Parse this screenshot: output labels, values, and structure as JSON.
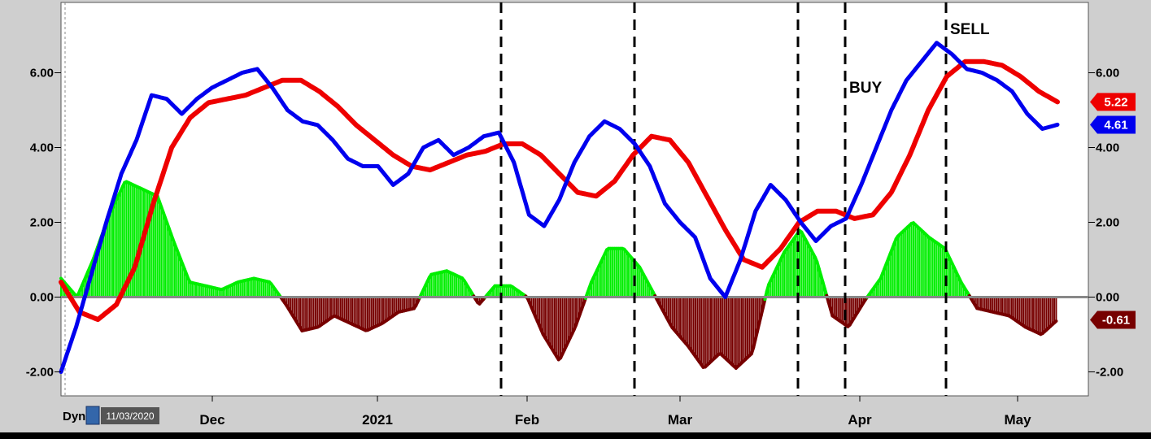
{
  "chart_data": {
    "type": "line",
    "x_labels": [
      "Dec",
      "2021",
      "Feb",
      "Mar",
      "Apr",
      "May"
    ],
    "y_ticks": [
      "-2.00",
      "0.00",
      "2.00",
      "4.00",
      "6.00"
    ],
    "ylim": [
      -2.6,
      7.8
    ],
    "grid": false,
    "series": [
      {
        "color": "#0000ee",
        "points": [
          [
            0,
            -2.0
          ],
          [
            1,
            -0.8
          ],
          [
            2,
            0.6
          ],
          [
            3,
            2.0
          ],
          [
            4,
            3.3
          ],
          [
            5,
            4.2
          ],
          [
            6,
            5.4
          ],
          [
            7,
            5.3
          ],
          [
            8,
            4.9
          ],
          [
            9,
            5.3
          ],
          [
            10,
            5.6
          ],
          [
            11,
            5.8
          ],
          [
            12,
            6.0
          ],
          [
            13,
            6.1
          ],
          [
            14,
            5.6
          ],
          [
            15,
            5.0
          ],
          [
            16,
            4.7
          ],
          [
            17,
            4.6
          ],
          [
            18,
            4.2
          ],
          [
            19,
            3.7
          ],
          [
            20,
            3.5
          ],
          [
            21,
            3.5
          ],
          [
            22,
            3.0
          ],
          [
            23,
            3.3
          ],
          [
            24,
            4.0
          ],
          [
            25,
            4.2
          ],
          [
            26,
            3.8
          ],
          [
            27,
            4.0
          ],
          [
            28,
            4.3
          ],
          [
            29,
            4.4
          ],
          [
            30,
            3.6
          ],
          [
            31,
            2.2
          ],
          [
            32,
            1.9
          ],
          [
            33,
            2.6
          ],
          [
            34,
            3.6
          ],
          [
            35,
            4.3
          ],
          [
            36,
            4.7
          ],
          [
            37,
            4.5
          ],
          [
            38,
            4.1
          ],
          [
            39,
            3.5
          ],
          [
            40,
            2.5
          ],
          [
            41,
            2.0
          ],
          [
            42,
            1.6
          ],
          [
            43,
            0.5
          ],
          [
            44,
            0.0
          ],
          [
            45,
            1.0
          ],
          [
            46,
            2.3
          ],
          [
            47,
            3.0
          ],
          [
            48,
            2.6
          ],
          [
            49,
            2.0
          ],
          [
            50,
            1.5
          ],
          [
            51,
            1.9
          ],
          [
            52,
            2.1
          ],
          [
            53,
            3.0
          ],
          [
            54,
            4.0
          ],
          [
            55,
            5.0
          ],
          [
            56,
            5.8
          ],
          [
            57,
            6.3
          ],
          [
            58,
            6.8
          ],
          [
            59,
            6.5
          ],
          [
            60,
            6.1
          ],
          [
            61,
            6.0
          ],
          [
            62,
            5.8
          ],
          [
            63,
            5.5
          ],
          [
            64,
            4.9
          ],
          [
            65,
            4.5
          ],
          [
            66,
            4.61
          ]
        ]
      },
      {
        "color": "#ee0000",
        "points": [
          [
            0,
            0.4
          ],
          [
            1,
            -0.4
          ],
          [
            2,
            -0.6
          ],
          [
            3,
            -0.2
          ],
          [
            4,
            0.8
          ],
          [
            5,
            2.5
          ],
          [
            6,
            4.0
          ],
          [
            7,
            4.8
          ],
          [
            8,
            5.2
          ],
          [
            9,
            5.3
          ],
          [
            10,
            5.4
          ],
          [
            11,
            5.6
          ],
          [
            12,
            5.8
          ],
          [
            13,
            5.8
          ],
          [
            14,
            5.5
          ],
          [
            15,
            5.1
          ],
          [
            16,
            4.6
          ],
          [
            17,
            4.2
          ],
          [
            18,
            3.8
          ],
          [
            19,
            3.5
          ],
          [
            20,
            3.4
          ],
          [
            21,
            3.6
          ],
          [
            22,
            3.8
          ],
          [
            23,
            3.9
          ],
          [
            24,
            4.1
          ],
          [
            25,
            4.1
          ],
          [
            26,
            3.8
          ],
          [
            27,
            3.3
          ],
          [
            28,
            2.8
          ],
          [
            29,
            2.7
          ],
          [
            30,
            3.1
          ],
          [
            31,
            3.8
          ],
          [
            32,
            4.3
          ],
          [
            33,
            4.2
          ],
          [
            34,
            3.6
          ],
          [
            35,
            2.7
          ],
          [
            36,
            1.8
          ],
          [
            37,
            1.0
          ],
          [
            38,
            0.8
          ],
          [
            39,
            1.3
          ],
          [
            40,
            2.0
          ],
          [
            41,
            2.3
          ],
          [
            42,
            2.3
          ],
          [
            43,
            2.1
          ],
          [
            44,
            2.2
          ],
          [
            45,
            2.8
          ],
          [
            46,
            3.8
          ],
          [
            47,
            5.0
          ],
          [
            48,
            5.9
          ],
          [
            49,
            6.3
          ],
          [
            50,
            6.3
          ],
          [
            51,
            6.2
          ],
          [
            52,
            5.9
          ],
          [
            53,
            5.5
          ],
          [
            54,
            5.22
          ]
        ]
      },
      {
        "positive_color": "#00ee00",
        "negative_color": "#770000",
        "points": [
          [
            0,
            0.5
          ],
          [
            1,
            0.0
          ],
          [
            2,
            1.0
          ],
          [
            3,
            2.2
          ],
          [
            4,
            3.1
          ],
          [
            5,
            2.9
          ],
          [
            6,
            2.7
          ],
          [
            7,
            1.5
          ],
          [
            8,
            0.4
          ],
          [
            9,
            0.3
          ],
          [
            10,
            0.2
          ],
          [
            11,
            0.4
          ],
          [
            12,
            0.5
          ],
          [
            13,
            0.4
          ],
          [
            14,
            -0.2
          ],
          [
            15,
            -0.9
          ],
          [
            16,
            -0.8
          ],
          [
            17,
            -0.5
          ],
          [
            18,
            -0.7
          ],
          [
            19,
            -0.9
          ],
          [
            20,
            -0.7
          ],
          [
            21,
            -0.4
          ],
          [
            22,
            -0.3
          ],
          [
            23,
            0.6
          ],
          [
            24,
            0.7
          ],
          [
            25,
            0.5
          ],
          [
            26,
            -0.2
          ],
          [
            27,
            0.3
          ],
          [
            28,
            0.3
          ],
          [
            29,
            0.0
          ],
          [
            30,
            -1.0
          ],
          [
            31,
            -1.7
          ],
          [
            32,
            -0.8
          ],
          [
            33,
            0.4
          ],
          [
            34,
            1.3
          ],
          [
            35,
            1.3
          ],
          [
            36,
            0.8
          ],
          [
            37,
            0.0
          ],
          [
            38,
            -0.8
          ],
          [
            39,
            -1.3
          ],
          [
            40,
            -1.9
          ],
          [
            41,
            -1.5
          ],
          [
            42,
            -1.9
          ],
          [
            43,
            -1.5
          ],
          [
            44,
            0.3
          ],
          [
            45,
            1.2
          ],
          [
            46,
            1.8
          ],
          [
            47,
            1.0
          ],
          [
            48,
            -0.5
          ],
          [
            49,
            -0.8
          ],
          [
            50,
            -0.1
          ],
          [
            51,
            0.5
          ],
          [
            52,
            1.6
          ],
          [
            53,
            2.0
          ],
          [
            54,
            1.6
          ],
          [
            55,
            1.3
          ],
          [
            56,
            0.4
          ],
          [
            57,
            -0.3
          ],
          [
            58,
            -0.4
          ],
          [
            59,
            -0.5
          ],
          [
            60,
            -0.8
          ],
          [
            61,
            -1.0
          ],
          [
            62,
            -0.61
          ]
        ]
      }
    ],
    "value_badges": [
      {
        "text": "5.22",
        "value": 5.22,
        "color": "#ee0000"
      },
      {
        "text": "4.61",
        "value": 4.61,
        "color": "#0000ee"
      },
      {
        "text": "-0.61",
        "value": -0.61,
        "color": "#770000"
      }
    ],
    "annotations": [
      {
        "text": "BUY"
      },
      {
        "text": "SELL"
      }
    ],
    "date_label": "11/03/2020",
    "corner_text": "Dyn"
  }
}
